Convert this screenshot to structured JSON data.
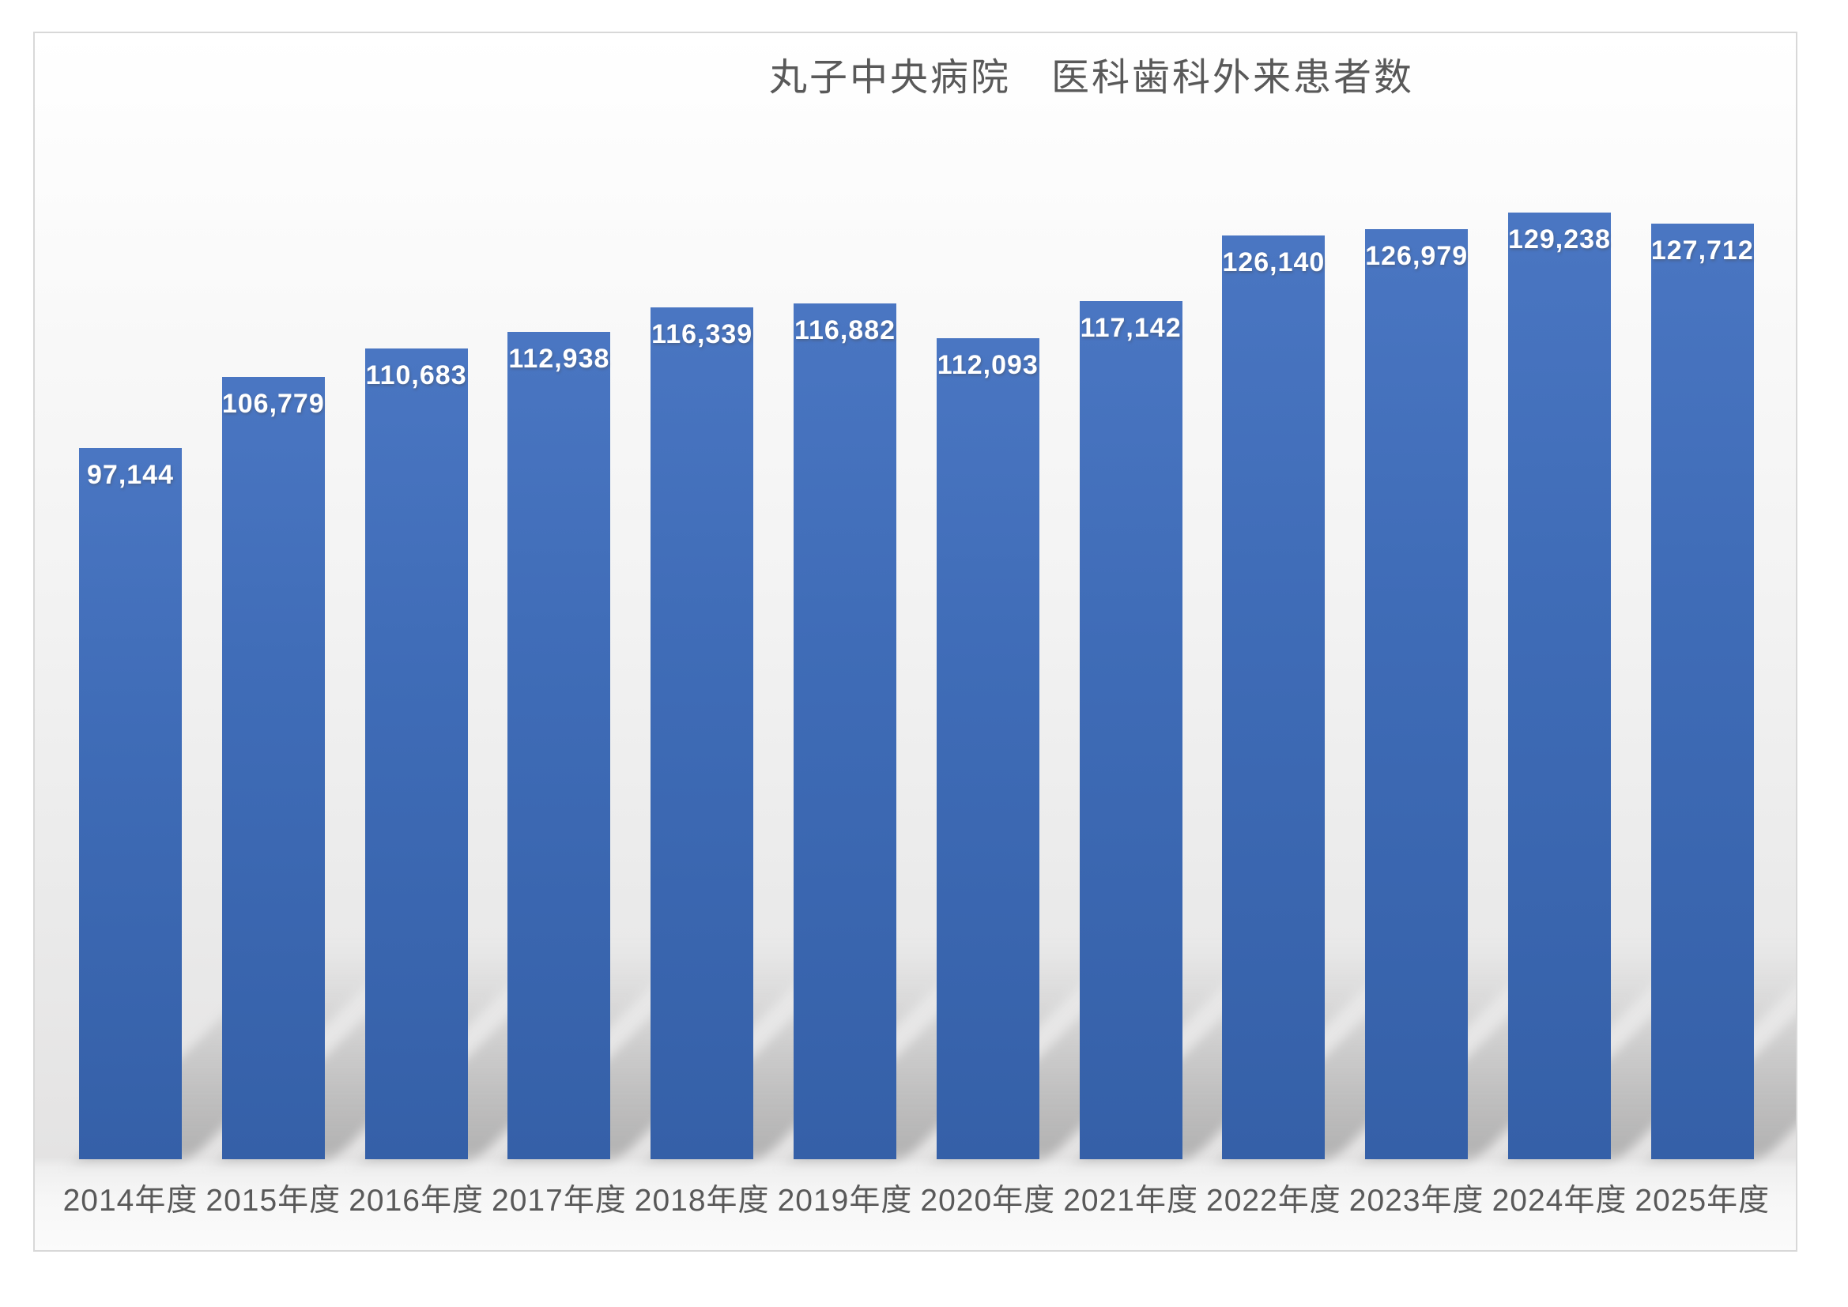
{
  "chart_data": {
    "type": "bar",
    "title": "丸子中央病院　医科歯科外来患者数",
    "categories": [
      "2014年度",
      "2015年度",
      "2016年度",
      "2017年度",
      "2018年度",
      "2019年度",
      "2020年度",
      "2021年度",
      "2022年度",
      "2023年度",
      "2024年度",
      "2025年度"
    ],
    "values": [
      97144,
      106779,
      110683,
      112938,
      116339,
      116882,
      112093,
      117142,
      126140,
      126979,
      129238,
      127712
    ],
    "value_labels": [
      "97,144",
      "106,779",
      "110,683",
      "112,938",
      "116,339",
      "116,882",
      "112,093",
      "117,142",
      "126,140",
      "126,979",
      "129,238",
      "127,712"
    ],
    "xlabel": "",
    "ylabel": "",
    "ylim": [
      0,
      135000
    ],
    "grid": false,
    "legend": "none",
    "data_labels_position": "inside-top",
    "colors": {
      "bar": "#3f6cb7",
      "data_label": "#ffffff",
      "category_label": "#595959",
      "title": "#595959",
      "frame_border": "#d8d8d8",
      "background_top": "#ffffff",
      "background_bottom": "#e4e3e3"
    },
    "effects": "perspective shadow lower-right under each bar, gradient chart background"
  }
}
